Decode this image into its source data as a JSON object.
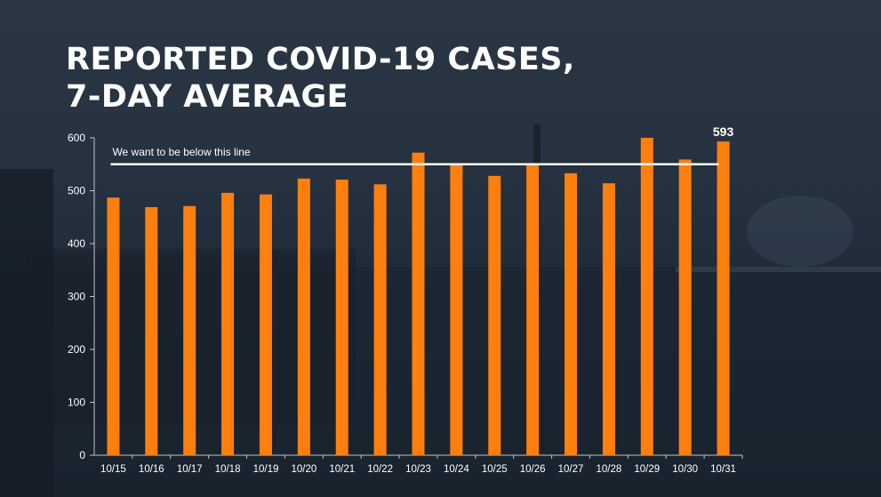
{
  "title_line1": "REPORTED COVID-19 CASES,",
  "title_line2": "7-DAY AVERAGE",
  "colors": {
    "bar": "#ff7f0e",
    "threshold": "#ffffff",
    "text": "#ffffff"
  },
  "chart_data": {
    "type": "bar",
    "categories": [
      "10/15",
      "10/16",
      "10/17",
      "10/18",
      "10/19",
      "10/20",
      "10/21",
      "10/22",
      "10/23",
      "10/24",
      "10/25",
      "10/26",
      "10/27",
      "10/28",
      "10/29",
      "10/30",
      "10/31"
    ],
    "values": [
      487,
      469,
      471,
      496,
      493,
      523,
      521,
      512,
      572,
      549,
      528,
      549,
      533,
      514,
      600,
      559,
      593
    ],
    "ylim": [
      0,
      600
    ],
    "yticks": [
      0,
      100,
      200,
      300,
      400,
      500,
      600
    ],
    "threshold": {
      "value": 550,
      "label": "We want to be below this line"
    },
    "data_labels": [
      {
        "index": 16,
        "text": "593"
      }
    ]
  }
}
